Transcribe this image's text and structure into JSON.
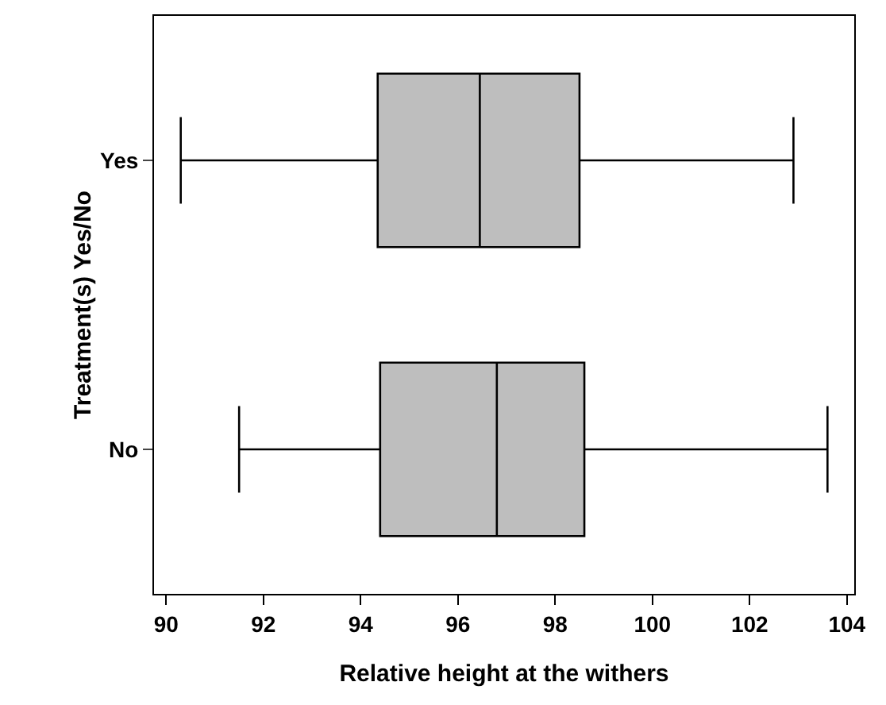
{
  "chart_data": {
    "type": "box",
    "orientation": "horizontal",
    "xlabel": "Relative height at the withers",
    "ylabel": "Treatment(s) Yes/No",
    "categories": [
      "Yes",
      "No"
    ],
    "boxes": [
      {
        "low": 90.3,
        "q1": 94.35,
        "median": 96.45,
        "q3": 98.5,
        "high": 102.9
      },
      {
        "low": 91.5,
        "q1": 94.4,
        "median": 96.8,
        "q3": 98.6,
        "high": 103.6
      }
    ],
    "color": "#bebebe",
    "xlim": [
      89.75,
      104.15
    ],
    "xticks": [
      90,
      92,
      94,
      96,
      98,
      100,
      102,
      104
    ],
    "grid": false
  }
}
